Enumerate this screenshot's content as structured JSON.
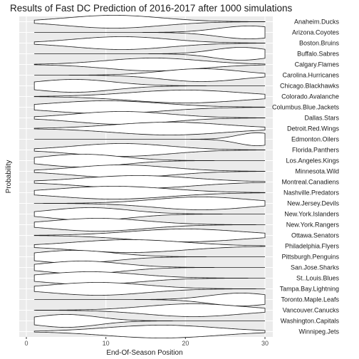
{
  "chart_data": {
    "type": "violin",
    "title": "Results of Fast DC Prediction of 2016-2017 after 1000 simulations",
    "xlabel": "End-Of-Season Position",
    "ylabel": "Probability",
    "xlim": [
      0,
      30
    ],
    "x_ticks": [
      0,
      10,
      20,
      30
    ],
    "grid": true,
    "legend": "none",
    "panel_color": "#ebebeb",
    "outline_color": "#1a1a1a",
    "series": [
      {
        "name": "Anaheim.Ducks",
        "mean": 11,
        "sd": 6
      },
      {
        "name": "Arizona.Coyotes",
        "mean": 28,
        "sd": 4
      },
      {
        "name": "Boston.Bruins",
        "mean": 12,
        "sd": 6
      },
      {
        "name": "Buffalo.Sabres",
        "mean": 27,
        "sd": 3.5
      },
      {
        "name": "Calgary.Flames",
        "mean": 16,
        "sd": 6
      },
      {
        "name": "Carolina.Hurricanes",
        "mean": 22,
        "sd": 5
      },
      {
        "name": "Chicago.Blackhawks",
        "mean": 6,
        "sd": 5
      },
      {
        "name": "Colorado.Avalanche",
        "mean": 20,
        "sd": 7
      },
      {
        "name": "Columbus.Blue.Jackets",
        "mean": 10,
        "sd": 7
      },
      {
        "name": "Dallas.Stars",
        "mean": 12,
        "sd": 6
      },
      {
        "name": "Detroit.Red.Wings",
        "mean": 18,
        "sd": 7
      },
      {
        "name": "Edmonton.Oilers",
        "mean": 29,
        "sd": 2.5
      },
      {
        "name": "Florida.Panthers",
        "mean": 12,
        "sd": 6
      },
      {
        "name": "Los.Angeles.Kings",
        "mean": 7,
        "sd": 5
      },
      {
        "name": "Minnesota.Wild",
        "mean": 12,
        "sd": 6
      },
      {
        "name": "Montreal.Canadiens",
        "mean": 14,
        "sd": 7
      },
      {
        "name": "Nashville.Predators",
        "mean": 11,
        "sd": 7
      },
      {
        "name": "New.Jersey.Devils",
        "mean": 22,
        "sd": 6
      },
      {
        "name": "New.York.Islanders",
        "mean": 8,
        "sd": 5
      },
      {
        "name": "New.York.Rangers",
        "mean": 9,
        "sd": 6
      },
      {
        "name": "Ottawa.Senators",
        "mean": 20,
        "sd": 7
      },
      {
        "name": "Philadelphia.Flyers",
        "mean": 13,
        "sd": 7
      },
      {
        "name": "Pittsburgh.Penguins",
        "mean": 6,
        "sd": 5
      },
      {
        "name": "San.Jose.Sharks",
        "mean": 7,
        "sd": 5
      },
      {
        "name": "St..Louis.Blues",
        "mean": 8,
        "sd": 6
      },
      {
        "name": "Tampa.Bay.Lightning",
        "mean": 9,
        "sd": 6
      },
      {
        "name": "Toronto.Maple.Leafs",
        "mean": 27,
        "sd": 4
      },
      {
        "name": "Vancouver.Canucks",
        "mean": 21,
        "sd": 6
      },
      {
        "name": "Washington.Capitals",
        "mean": 5,
        "sd": 4
      },
      {
        "name": "Winnipeg.Jets",
        "mean": 17,
        "sd": 7
      }
    ]
  }
}
